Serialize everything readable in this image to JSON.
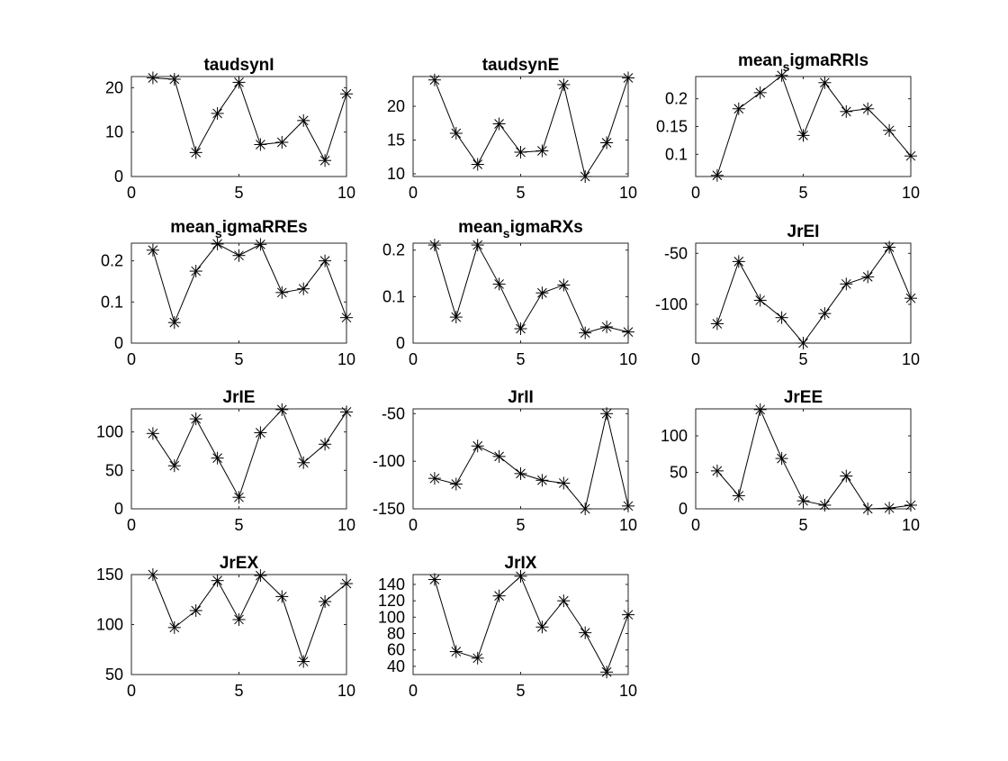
{
  "chart_data": [
    {
      "type": "line",
      "title": "taudsynI",
      "marker": "asterisk",
      "x": [
        1,
        2,
        3,
        4,
        5,
        6,
        7,
        8,
        9,
        10
      ],
      "series": [
        {
          "values": [
            22.2,
            21.9,
            5.4,
            14.2,
            21.2,
            7.2,
            7.7,
            12.6,
            3.6,
            18.6
          ]
        }
      ],
      "xlim": [
        0,
        10
      ],
      "ylim": [
        0,
        22.5
      ],
      "xticks": [
        "0",
        "5",
        "10"
      ],
      "yticks": [
        {
          "v": 0,
          "label": "0"
        },
        {
          "v": 10,
          "label": "10"
        },
        {
          "v": 20,
          "label": "20"
        }
      ],
      "grid": false
    },
    {
      "type": "line",
      "title": "taudsynE",
      "marker": "asterisk",
      "x": [
        1,
        2,
        3,
        4,
        5,
        6,
        7,
        8,
        9,
        10
      ],
      "series": [
        {
          "values": [
            23.9,
            16.0,
            11.4,
            17.4,
            13.2,
            13.4,
            23.2,
            9.6,
            14.6,
            24.2
          ]
        }
      ],
      "xlim": [
        0,
        10
      ],
      "ylim": [
        9.6,
        24.4
      ],
      "xticks": [
        "0",
        "5",
        "10"
      ],
      "yticks": [
        {
          "v": 10,
          "label": "10"
        },
        {
          "v": 15,
          "label": "15"
        },
        {
          "v": 20,
          "label": "20"
        }
      ],
      "grid": false
    },
    {
      "type": "line",
      "title": "mean_sigmaRRIs",
      "title_main": "mean",
      "title_sub": "s",
      "title_rest": "igmaRRIs",
      "marker": "asterisk",
      "x": [
        1,
        2,
        3,
        4,
        5,
        6,
        7,
        8,
        9,
        10
      ],
      "series": [
        {
          "values": [
            0.062,
            0.182,
            0.211,
            0.242,
            0.134,
            0.229,
            0.177,
            0.182,
            0.143,
            0.097
          ]
        }
      ],
      "xlim": [
        0,
        10
      ],
      "ylim": [
        0.06,
        0.24
      ],
      "xticks": [
        "0",
        "5",
        "10"
      ],
      "yticks": [
        {
          "v": 0.1,
          "label": "0.1"
        },
        {
          "v": 0.15,
          "label": "0.15"
        },
        {
          "v": 0.2,
          "label": "0.2"
        }
      ],
      "grid": false
    },
    {
      "type": "line",
      "title": "mean_sigmaRREs",
      "title_main": "mean",
      "title_sub": "s",
      "title_rest": "igmaRREs",
      "marker": "asterisk",
      "x": [
        1,
        2,
        3,
        4,
        5,
        6,
        7,
        8,
        9,
        10
      ],
      "series": [
        {
          "values": [
            0.226,
            0.05,
            0.175,
            0.241,
            0.213,
            0.24,
            0.123,
            0.132,
            0.2,
            0.062
          ]
        }
      ],
      "xlim": [
        0,
        10
      ],
      "ylim": [
        0,
        0.243
      ],
      "xticks": [
        "0",
        "5",
        "10"
      ],
      "yticks": [
        {
          "v": 0,
          "label": "0"
        },
        {
          "v": 0.1,
          "label": "0.1"
        },
        {
          "v": 0.2,
          "label": "0.2"
        }
      ],
      "grid": false
    },
    {
      "type": "line",
      "title": "mean_sigmaRXs",
      "title_main": "mean",
      "title_sub": "s",
      "title_rest": "igmaRXs",
      "marker": "asterisk",
      "x": [
        1,
        2,
        3,
        4,
        5,
        6,
        7,
        8,
        9,
        10
      ],
      "series": [
        {
          "values": [
            0.211,
            0.056,
            0.211,
            0.127,
            0.031,
            0.108,
            0.125,
            0.022,
            0.035,
            0.024
          ]
        }
      ],
      "xlim": [
        0,
        10
      ],
      "ylim": [
        0,
        0.215
      ],
      "xticks": [
        "0",
        "5",
        "10"
      ],
      "yticks": [
        {
          "v": 0,
          "label": "0"
        },
        {
          "v": 0.1,
          "label": "0.1"
        },
        {
          "v": 0.2,
          "label": "0.2"
        }
      ],
      "grid": false
    },
    {
      "type": "line",
      "title": "JrEI",
      "marker": "asterisk",
      "x": [
        1,
        2,
        3,
        4,
        5,
        6,
        7,
        8,
        9,
        10
      ],
      "series": [
        {
          "values": [
            -119,
            -58,
            -96,
            -113,
            -138,
            -109,
            -80,
            -73,
            -44,
            -94
          ]
        }
      ],
      "xlim": [
        0,
        10
      ],
      "ylim": [
        -138,
        -40
      ],
      "xticks": [
        "0",
        "5",
        "10"
      ],
      "yticks": [
        {
          "v": -100,
          "label": "-100"
        },
        {
          "v": -50,
          "label": "-50"
        }
      ],
      "grid": false
    },
    {
      "type": "line",
      "title": "JrIE",
      "marker": "asterisk",
      "x": [
        1,
        2,
        3,
        4,
        5,
        6,
        7,
        8,
        9,
        10
      ],
      "series": [
        {
          "values": [
            98,
            56,
            117,
            66,
            15,
            99,
            129,
            60,
            84,
            126
          ]
        }
      ],
      "xlim": [
        0,
        10
      ],
      "ylim": [
        0,
        130
      ],
      "xticks": [
        "0",
        "5",
        "10"
      ],
      "yticks": [
        {
          "v": 0,
          "label": "0"
        },
        {
          "v": 50,
          "label": "50"
        },
        {
          "v": 100,
          "label": "100"
        }
      ],
      "grid": false
    },
    {
      "type": "line",
      "title": "JrII",
      "marker": "asterisk",
      "x": [
        1,
        2,
        3,
        4,
        5,
        6,
        7,
        8,
        9,
        10
      ],
      "series": [
        {
          "values": [
            -118,
            -124,
            -84,
            -95,
            -113,
            -120,
            -123,
            -150,
            -50,
            -147
          ]
        }
      ],
      "xlim": [
        0,
        10
      ],
      "ylim": [
        -150,
        -45
      ],
      "xticks": [
        "0",
        "5",
        "10"
      ],
      "yticks": [
        {
          "v": -150,
          "label": "-150"
        },
        {
          "v": -100,
          "label": "-100"
        },
        {
          "v": -50,
          "label": "-50"
        }
      ],
      "grid": false
    },
    {
      "type": "line",
      "title": "JrEE",
      "marker": "asterisk",
      "x": [
        1,
        2,
        3,
        4,
        5,
        6,
        7,
        8,
        9,
        10
      ],
      "series": [
        {
          "values": [
            52,
            18,
            136,
            69,
            11,
            5,
            45,
            0,
            1,
            5
          ]
        }
      ],
      "xlim": [
        0,
        10
      ],
      "ylim": [
        0,
        137
      ],
      "xticks": [
        "0",
        "5",
        "10"
      ],
      "yticks": [
        {
          "v": 0,
          "label": "0"
        },
        {
          "v": 50,
          "label": "50"
        },
        {
          "v": 100,
          "label": "100"
        }
      ],
      "grid": false
    },
    {
      "type": "line",
      "title": "JrEX",
      "marker": "asterisk",
      "x": [
        1,
        2,
        3,
        4,
        5,
        6,
        7,
        8,
        9,
        10
      ],
      "series": [
        {
          "values": [
            150,
            97,
            114,
            144,
            105,
            149,
            128,
            63,
            123,
            141
          ]
        }
      ],
      "xlim": [
        0,
        10
      ],
      "ylim": [
        50,
        150
      ],
      "xticks": [
        "0",
        "5",
        "10"
      ],
      "yticks": [
        {
          "v": 50,
          "label": "50"
        },
        {
          "v": 100,
          "label": "100"
        },
        {
          "v": 150,
          "label": "150"
        }
      ],
      "grid": false
    },
    {
      "type": "line",
      "title": "JrIX",
      "marker": "asterisk",
      "x": [
        1,
        2,
        3,
        4,
        5,
        6,
        7,
        8,
        9,
        10
      ],
      "series": [
        {
          "values": [
            146,
            58,
            50,
            126,
            150,
            88,
            120,
            81,
            33,
            103
          ]
        }
      ],
      "xlim": [
        0,
        10
      ],
      "ylim": [
        30,
        152
      ],
      "xticks": [
        "0",
        "5",
        "10"
      ],
      "yticks": [
        {
          "v": 40,
          "label": "40"
        },
        {
          "v": 60,
          "label": "60"
        },
        {
          "v": 80,
          "label": "80"
        },
        {
          "v": 100,
          "label": "100"
        },
        {
          "v": 120,
          "label": "120"
        },
        {
          "v": 140,
          "label": "140"
        }
      ],
      "grid": false
    }
  ]
}
